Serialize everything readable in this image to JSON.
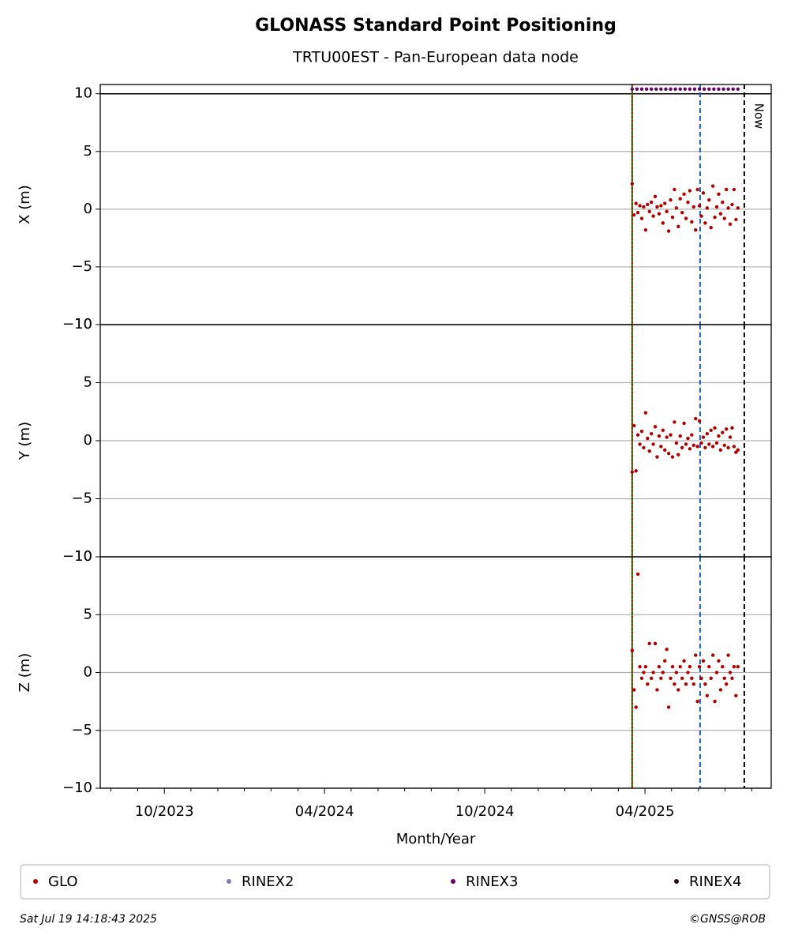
{
  "title": "GLONASS Standard Point Positioning",
  "subtitle": "TRTU00EST - Pan-European data node",
  "footer_left": "Sat Jul 19 14:18:43 2025",
  "footer_right": "©GNSS@ROB",
  "chart_data": [
    {
      "type": "scatter",
      "ylabel": "X (m)",
      "ylim": [
        -10,
        10.8
      ],
      "yticks": [
        {
          "value": -10,
          "label": "−10"
        },
        {
          "value": -5,
          "label": "−5"
        },
        0,
        5,
        10
      ],
      "grid": true,
      "hline": 10,
      "xlim": [
        2023.55,
        2025.644
      ],
      "x": [
        2025.21,
        2025.216,
        2025.222,
        2025.228,
        2025.234,
        2025.24,
        2025.246,
        2025.252,
        2025.258,
        2025.264,
        2025.27,
        2025.276,
        2025.282,
        2025.288,
        2025.294,
        2025.3,
        2025.306,
        2025.312,
        2025.318,
        2025.324,
        2025.33,
        2025.336,
        2025.342,
        2025.348,
        2025.354,
        2025.36,
        2025.366,
        2025.372,
        2025.378,
        2025.384,
        2025.39,
        2025.396,
        2025.402,
        2025.408,
        2025.414,
        2025.42,
        2025.426,
        2025.432,
        2025.438,
        2025.444,
        2025.45,
        2025.456,
        2025.462,
        2025.468,
        2025.474,
        2025.48,
        2025.486,
        2025.492,
        2025.498,
        2025.504,
        2025.51,
        2025.516,
        2025.522,
        2025.528,
        2025.534,
        2025.54
      ],
      "series": [
        {
          "name": "GLO",
          "color": "#b00000",
          "values": [
            2.2,
            -0.5,
            0.5,
            -0.3,
            0.3,
            -0.8,
            0.2,
            -1.8,
            0.4,
            -0.2,
            0.6,
            -0.6,
            1.1,
            0.2,
            -0.4,
            0.3,
            -1.2,
            0.5,
            -0.2,
            -1.9,
            0.8,
            -0.7,
            1.7,
            0.1,
            -1.5,
            0.9,
            -0.3,
            1.3,
            -0.8,
            0.6,
            1.6,
            -1.1,
            0.2,
            -1.8,
            1.7,
            0.3,
            -0.6,
            1.4,
            -1.2,
            0.1,
            0.8,
            -1.6,
            2.0,
            -0.7,
            0.2,
            1.3,
            -0.4,
            0.6,
            -0.8,
            1.7,
            0.1,
            -1.3,
            0.4,
            1.7,
            -0.9,
            0.1
          ]
        },
        {
          "name": "RINEX2",
          "color": "#7b7bbd",
          "x": [],
          "values": []
        },
        {
          "name": "RINEX3",
          "color": "#6b006b",
          "x": [
            2025.21,
            2025.225,
            2025.24,
            2025.255,
            2025.27,
            2025.285,
            2025.3,
            2025.315,
            2025.33,
            2025.345,
            2025.36,
            2025.375,
            2025.39,
            2025.405,
            2025.42,
            2025.435,
            2025.45,
            2025.465,
            2025.48,
            2025.495,
            2025.51,
            2025.525,
            2025.54
          ],
          "values": [
            10.4,
            10.4,
            10.4,
            10.4,
            10.4,
            10.4,
            10.4,
            10.4,
            10.4,
            10.4,
            10.4,
            10.4,
            10.4,
            10.4,
            10.4,
            10.4,
            10.4,
            10.4,
            10.4,
            10.4,
            10.4,
            10.4,
            10.4
          ]
        },
        {
          "name": "RINEX4",
          "color": "#2a0a1a",
          "x": [],
          "values": []
        }
      ],
      "vlines": [
        {
          "x": 2025.21,
          "color": "#008000",
          "style": "solid"
        },
        {
          "x": 2025.21,
          "color": "#d00000",
          "style": "dotted"
        },
        {
          "x": 2025.422,
          "color": "#1060c0",
          "style": "dashed"
        },
        {
          "x": 2025.56,
          "color": "#000000",
          "style": "dashed",
          "label": "Now"
        }
      ]
    },
    {
      "type": "scatter",
      "ylabel": "Y (m)",
      "ylim": [
        -10,
        10
      ],
      "yticks": [
        {
          "value": -10,
          "label": "−10"
        },
        {
          "value": -5,
          "label": "−5"
        },
        0,
        5,
        10
      ],
      "grid": true,
      "xlim": [
        2023.55,
        2025.644
      ],
      "x": [
        2025.21,
        2025.216,
        2025.222,
        2025.228,
        2025.234,
        2025.24,
        2025.246,
        2025.252,
        2025.258,
        2025.264,
        2025.27,
        2025.276,
        2025.282,
        2025.288,
        2025.294,
        2025.3,
        2025.306,
        2025.312,
        2025.318,
        2025.324,
        2025.33,
        2025.336,
        2025.342,
        2025.348,
        2025.354,
        2025.36,
        2025.366,
        2025.372,
        2025.378,
        2025.384,
        2025.39,
        2025.396,
        2025.402,
        2025.408,
        2025.414,
        2025.42,
        2025.426,
        2025.432,
        2025.438,
        2025.444,
        2025.45,
        2025.456,
        2025.462,
        2025.468,
        2025.474,
        2025.48,
        2025.486,
        2025.492,
        2025.498,
        2025.504,
        2025.51,
        2025.516,
        2025.522,
        2025.528,
        2025.534,
        2025.54
      ],
      "series": [
        {
          "name": "GLO",
          "color": "#b00000",
          "values": [
            -2.7,
            1.3,
            -2.6,
            0.5,
            -0.3,
            0.8,
            -0.6,
            2.4,
            0.2,
            -0.9,
            0.6,
            -0.3,
            1.2,
            -1.4,
            0.4,
            -0.5,
            0.9,
            -0.8,
            0.3,
            -1.1,
            0.5,
            -1.4,
            1.6,
            -0.2,
            -1.2,
            0.4,
            -0.6,
            1.5,
            -0.3,
            0.2,
            -0.7,
            0.5,
            -0.4,
            1.9,
            -0.5,
            1.7,
            -0.2,
            0.3,
            -0.6,
            0.6,
            -0.3,
            0.9,
            -0.5,
            1.1,
            -0.2,
            0.4,
            -0.8,
            0.7,
            -0.4,
            1.0,
            -0.6,
            0.3,
            1.1,
            -0.5,
            -1.0,
            -0.8
          ]
        }
      ],
      "vlines": [
        {
          "x": 2025.21,
          "color": "#008000",
          "style": "solid"
        },
        {
          "x": 2025.21,
          "color": "#d00000",
          "style": "dotted"
        },
        {
          "x": 2025.422,
          "color": "#1060c0",
          "style": "dashed"
        },
        {
          "x": 2025.56,
          "color": "#000000",
          "style": "dashed"
        }
      ]
    },
    {
      "type": "scatter",
      "ylabel": "Z (m)",
      "ylim": [
        -10,
        10
      ],
      "yticks": [
        {
          "value": -10,
          "label": "−10"
        },
        {
          "value": -5,
          "label": "−5"
        },
        0,
        5,
        10
      ],
      "grid": true,
      "xlim": [
        2023.55,
        2025.644
      ],
      "xlabel": "Month/Year",
      "xticks": [
        {
          "value": 2023.75,
          "label": "10/2023"
        },
        {
          "value": 2024.25,
          "label": "04/2024"
        },
        {
          "value": 2024.75,
          "label": "10/2024"
        },
        {
          "value": 2025.25,
          "label": "04/2025"
        }
      ],
      "xminorticks": [
        2023.583,
        2023.667,
        2023.833,
        2023.917,
        2024.0,
        2024.083,
        2024.167,
        2024.333,
        2024.417,
        2024.5,
        2024.583,
        2024.667,
        2024.833,
        2024.917,
        2025.0,
        2025.083,
        2025.167,
        2025.333,
        2025.417,
        2025.5,
        2025.583
      ],
      "x": [
        2025.21,
        2025.216,
        2025.222,
        2025.228,
        2025.234,
        2025.24,
        2025.246,
        2025.252,
        2025.258,
        2025.264,
        2025.27,
        2025.276,
        2025.282,
        2025.288,
        2025.294,
        2025.3,
        2025.306,
        2025.312,
        2025.318,
        2025.324,
        2025.33,
        2025.336,
        2025.342,
        2025.348,
        2025.354,
        2025.36,
        2025.366,
        2025.372,
        2025.378,
        2025.384,
        2025.39,
        2025.396,
        2025.402,
        2025.408,
        2025.414,
        2025.42,
        2025.426,
        2025.432,
        2025.438,
        2025.444,
        2025.45,
        2025.456,
        2025.462,
        2025.468,
        2025.474,
        2025.48,
        2025.486,
        2025.492,
        2025.498,
        2025.504,
        2025.51,
        2025.516,
        2025.522,
        2025.528,
        2025.534,
        2025.54
      ],
      "series": [
        {
          "name": "GLO",
          "color": "#b00000",
          "values": [
            1.9,
            -1.5,
            -3.0,
            8.5,
            0.5,
            -0.5,
            0.0,
            0.5,
            -1.0,
            2.5,
            -0.5,
            0.0,
            2.5,
            -1.5,
            0.5,
            -0.5,
            0.0,
            1.0,
            2.0,
            -3.0,
            -0.5,
            0.5,
            -1.0,
            0.0,
            -1.5,
            0.5,
            -0.5,
            1.0,
            -1.0,
            0.0,
            0.5,
            -0.5,
            -1.0,
            1.5,
            -2.5,
            0.5,
            -0.5,
            1.0,
            -1.0,
            -2.0,
            0.5,
            -0.5,
            1.5,
            -2.5,
            0.0,
            1.0,
            -1.5,
            0.5,
            -0.5,
            -1.0,
            1.5,
            0.0,
            -0.5,
            0.5,
            -2.0,
            0.5
          ]
        }
      ],
      "vlines": [
        {
          "x": 2025.21,
          "color": "#008000",
          "style": "solid"
        },
        {
          "x": 2025.21,
          "color": "#d00000",
          "style": "dotted"
        },
        {
          "x": 2025.422,
          "color": "#1060c0",
          "style": "dashed"
        },
        {
          "x": 2025.56,
          "color": "#000000",
          "style": "dashed"
        }
      ]
    }
  ]
}
